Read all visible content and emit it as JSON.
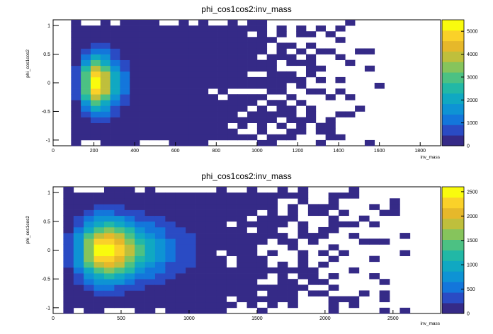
{
  "palette": [
    "#352a87",
    "#2a4bc4",
    "#1376db",
    "#0e93d4",
    "#10a8c2",
    "#22b8a6",
    "#4cc183",
    "#86c45c",
    "#bfbf3c",
    "#e6b82a",
    "#fad129",
    "#f9fb0e"
  ],
  "empty_color": "#ffffff",
  "chart_data": [
    {
      "type": "heatmap",
      "title": "phi_cos1cos2:inv_mass",
      "xlabel": "inv_mass",
      "ylabel": "phi_cos1cos2",
      "xlim": [
        0,
        1900
      ],
      "ylim": [
        -1.1,
        1.1
      ],
      "xticks": [
        0,
        200,
        400,
        600,
        800,
        1000,
        1200,
        1400,
        1600,
        1800
      ],
      "yticks": [
        -1,
        -0.5,
        0,
        0.5,
        1
      ],
      "cbar_max": 5500,
      "cbar_ticks": [
        0,
        1000,
        2000,
        3000,
        4000,
        5000
      ],
      "xbin_edges": [
        88,
        136,
        184,
        232,
        280,
        328,
        376,
        424,
        472,
        520,
        568,
        616,
        664,
        712,
        760,
        808,
        856,
        904,
        952,
        1000,
        1048,
        1096,
        1144,
        1192,
        1240,
        1288,
        1336,
        1384,
        1432,
        1480,
        1528,
        1576,
        1624,
        1672,
        1720,
        1768,
        1816
      ],
      "ybins": 22,
      "yrange": [
        -1.1,
        1.1
      ],
      "peak": {
        "x": 208,
        "y": 0.0,
        "value": 5300
      },
      "spread": {
        "x": 60,
        "y": 0.32
      },
      "tail_x": 1550,
      "grid": false
    },
    {
      "type": "heatmap",
      "title": "phi_cos1cos2:inv_mass",
      "xlabel": "inv_mass",
      "ylabel": "phi_cos1cos2",
      "xlim": [
        0,
        2850
      ],
      "ylim": [
        -1.1,
        1.1
      ],
      "xticks": [
        0,
        500,
        1000,
        1500,
        2000,
        2500
      ],
      "yticks": [
        -1,
        -0.5,
        0,
        0.5,
        1
      ],
      "cbar_max": 2600,
      "cbar_ticks": [
        0,
        500,
        1000,
        1500,
        2000,
        2500
      ],
      "xbin_edges": [
        75,
        150,
        225,
        300,
        375,
        450,
        525,
        600,
        675,
        750,
        825,
        900,
        975,
        1050,
        1125,
        1200,
        1275,
        1350,
        1425,
        1500,
        1575,
        1650,
        1725,
        1800,
        1875,
        1950,
        2025,
        2100,
        2175,
        2250,
        2325,
        2400,
        2475,
        2550,
        2625
      ],
      "ybins": 22,
      "yrange": [
        -1.1,
        1.1
      ],
      "peak": {
        "x": 390,
        "y": 0.0,
        "value": 2600
      },
      "spread": {
        "x": 170,
        "y": 0.35
      },
      "tail_x": 2550,
      "grid": false
    }
  ]
}
